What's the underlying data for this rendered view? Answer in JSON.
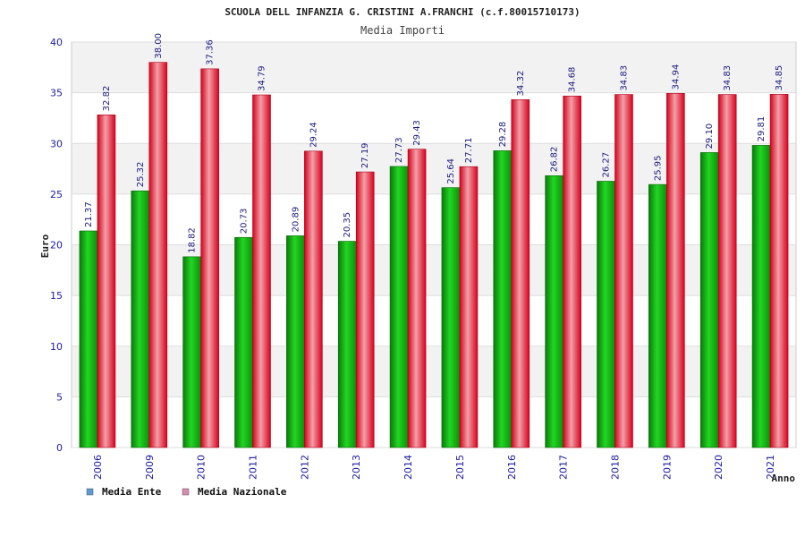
{
  "chart_data": {
    "type": "bar",
    "title": "SCUOLA DELL INFANZIA G. CRISTINI A.FRANCHI (c.f.80015710173)",
    "subtitle": "Media Importi",
    "xlabel": "Anno",
    "ylabel": "Euro",
    "ylim": [
      0,
      40
    ],
    "yticks": [
      0,
      5,
      10,
      15,
      20,
      25,
      30,
      35,
      40
    ],
    "categories": [
      "2006",
      "2009",
      "2010",
      "2011",
      "2012",
      "2013",
      "2014",
      "2015",
      "2016",
      "2017",
      "2018",
      "2019",
      "2020",
      "2021"
    ],
    "series": [
      {
        "name": "Media Ente",
        "values": [
          21.37,
          25.32,
          18.82,
          20.73,
          20.89,
          20.35,
          27.73,
          25.64,
          29.28,
          26.82,
          26.27,
          25.95,
          29.1,
          29.81
        ],
        "labels": [
          "21.37",
          "25.32",
          "18.82",
          "20.73",
          "20.89",
          "20.35",
          "27.73",
          "25.64",
          "29.28",
          "26.82",
          "26.27",
          "25.95",
          "29.10",
          "29.81"
        ],
        "color": "#1db31d",
        "legend_color": "#5b9bd5"
      },
      {
        "name": "Media Nazionale",
        "values": [
          32.82,
          38.0,
          37.36,
          34.79,
          29.24,
          27.19,
          29.43,
          27.71,
          34.32,
          34.68,
          34.83,
          34.94,
          34.83,
          34.85
        ],
        "labels": [
          "32.82",
          "38.00",
          "37.36",
          "34.79",
          "29.24",
          "27.19",
          "29.43",
          "27.71",
          "34.32",
          "34.68",
          "34.83",
          "34.94",
          "34.83",
          "34.85"
        ],
        "color": "#e8102a",
        "legend_color": "#d98bb0"
      }
    ],
    "legend_position": "bottom-left",
    "grid": true
  }
}
